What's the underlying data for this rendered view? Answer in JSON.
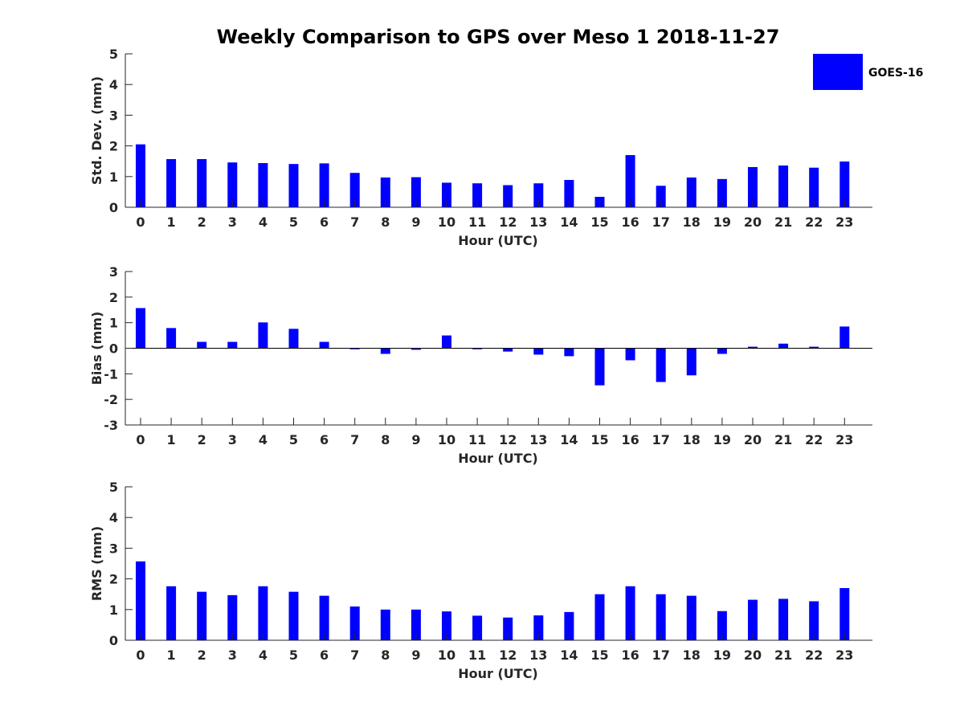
{
  "figure_title": "Weekly Comparison to GPS over Meso 1 2018-11-27",
  "colors": {
    "bar": "#0000ff",
    "axis": "#262626",
    "background": "#ffffff"
  },
  "legend": {
    "label": "GOES-16",
    "placement": "top-right"
  },
  "chart_data": [
    {
      "type": "bar",
      "title": "",
      "xlabel": "Hour (UTC)",
      "ylabel": "Std. Dev. (mm)",
      "ylim": [
        0,
        5
      ],
      "yticks": [
        0,
        1,
        2,
        3,
        4,
        5
      ],
      "categories": [
        "0",
        "1",
        "2",
        "3",
        "4",
        "5",
        "6",
        "7",
        "8",
        "9",
        "10",
        "11",
        "12",
        "13",
        "14",
        "15",
        "16",
        "17",
        "18",
        "19",
        "20",
        "21",
        "22",
        "23"
      ],
      "series": [
        {
          "name": "GOES-16",
          "values": [
            2.05,
            1.57,
            1.57,
            1.46,
            1.44,
            1.41,
            1.43,
            1.12,
            0.97,
            0.98,
            0.8,
            0.78,
            0.72,
            0.78,
            0.89,
            0.34,
            1.7,
            0.7,
            0.97,
            0.92,
            1.31,
            1.36,
            1.29,
            1.49
          ]
        }
      ],
      "grid": false
    },
    {
      "type": "bar",
      "title": "",
      "xlabel": "Hour (UTC)",
      "ylabel": "Bias (mm)",
      "ylim": [
        -3,
        3
      ],
      "yticks": [
        -3,
        -2,
        -1,
        0,
        1,
        2,
        3
      ],
      "categories": [
        "0",
        "1",
        "2",
        "3",
        "4",
        "5",
        "6",
        "7",
        "8",
        "9",
        "10",
        "11",
        "12",
        "13",
        "14",
        "15",
        "16",
        "17",
        "18",
        "19",
        "20",
        "21",
        "22",
        "23"
      ],
      "series": [
        {
          "name": "GOES-16",
          "values": [
            1.57,
            0.79,
            0.25,
            0.25,
            1.01,
            0.76,
            0.25,
            -0.04,
            -0.22,
            -0.06,
            0.5,
            -0.04,
            -0.13,
            -0.25,
            -0.31,
            -1.45,
            -0.47,
            -1.32,
            -1.06,
            -0.22,
            0.06,
            0.18,
            0.06,
            0.85
          ]
        }
      ],
      "grid": false
    },
    {
      "type": "bar",
      "title": "",
      "xlabel": "Hour (UTC)",
      "ylabel": "RMS (mm)",
      "ylim": [
        0,
        5
      ],
      "yticks": [
        0,
        1,
        2,
        3,
        4,
        5
      ],
      "categories": [
        "0",
        "1",
        "2",
        "3",
        "4",
        "5",
        "6",
        "7",
        "8",
        "9",
        "10",
        "11",
        "12",
        "13",
        "14",
        "15",
        "16",
        "17",
        "18",
        "19",
        "20",
        "21",
        "22",
        "23"
      ],
      "series": [
        {
          "name": "GOES-16",
          "values": [
            2.57,
            1.76,
            1.58,
            1.47,
            1.76,
            1.58,
            1.45,
            1.1,
            1.0,
            1.0,
            0.94,
            0.8,
            0.74,
            0.81,
            0.92,
            1.5,
            1.76,
            1.5,
            1.45,
            0.95,
            1.32,
            1.35,
            1.27,
            1.7
          ]
        }
      ],
      "grid": false
    }
  ]
}
